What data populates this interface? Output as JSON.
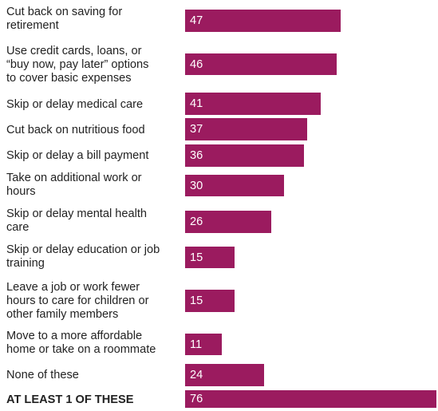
{
  "chart_data": {
    "type": "bar",
    "orientation": "horizontal",
    "bar_color": "#9b1b5f",
    "categories": [
      "Cut back on saving for\nretirement",
      "Use credit cards, loans, or\n“buy now, pay later” options\nto cover basic expenses",
      "Skip or delay medical care",
      "Cut back on nutritious food",
      "Skip or delay a bill payment",
      "Take on additional work or\nhours",
      "Skip or delay mental health\ncare",
      "Skip or delay education or job\ntraining",
      "Leave a job or work fewer\nhours to care for children or\nother family members",
      "Move to a more affordable\nhome or take on a roommate",
      "None of these",
      "AT LEAST 1 OF THESE"
    ],
    "values": [
      47,
      46,
      41,
      37,
      36,
      30,
      26,
      15,
      15,
      11,
      24,
      76
    ],
    "bold_categories": [
      "AT LEAST 1 OF THESE"
    ]
  }
}
